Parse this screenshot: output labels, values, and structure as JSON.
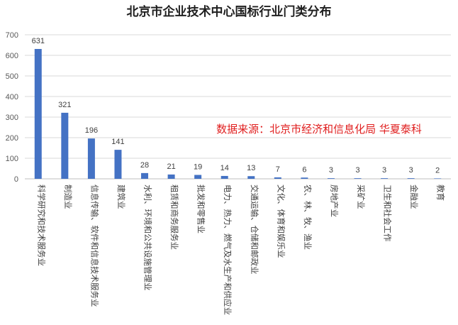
{
  "chart_data": {
    "type": "bar",
    "title": "北京市企业技术中心国标行业门类分布",
    "annotation": "数据来源：北京市经济和信息化局 华夏泰科",
    "categories": [
      "科学研究和技术服务业",
      "制造业",
      "信息传输、软件和信息技术服务业",
      "建筑业",
      "水利、环境和公共设施管理业",
      "租赁和商务服务业",
      "批发和零售业",
      "电力、热力、燃气及水生产和供应业",
      "交通运输、仓储和邮政业",
      "文化、体育和娱乐业",
      "农、林、牧、渔业",
      "房地产业",
      "采矿业",
      "卫生和社会工作",
      "金融业",
      "教育"
    ],
    "values": [
      631,
      321,
      196,
      141,
      28,
      21,
      19,
      14,
      13,
      7,
      6,
      3,
      3,
      3,
      3,
      2
    ],
    "ylim": [
      0,
      700
    ],
    "yticks": [
      0,
      100,
      200,
      300,
      400,
      500,
      600,
      700
    ],
    "grid": true,
    "legend": "none",
    "colors": {
      "bar": "#4472c4",
      "annotation": "#e02020"
    }
  }
}
